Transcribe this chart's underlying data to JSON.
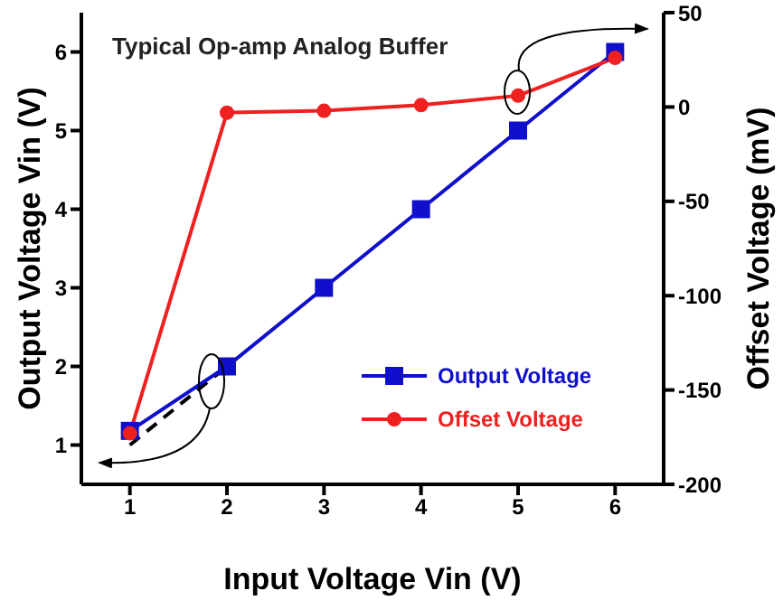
{
  "chart_data": {
    "type": "line",
    "xlabel": "Input Voltage Vin (V)",
    "ylabel": "Output Voltage Vin (V)",
    "y2label": "Offset Voltage (mV)",
    "annotations": [
      "Typical Op-amp Analog Buffer"
    ],
    "x": [
      1,
      2,
      3,
      4,
      5,
      6
    ],
    "series": [
      {
        "color": "#000000",
        "values": [
          1,
          2,
          null,
          null,
          null,
          null
        ],
        "line_style": "dashed",
        "marker": "none"
      },
      {
        "name": "Output Voltage",
        "color": "#1010cc",
        "values": [
          1.18,
          2,
          3,
          4,
          5,
          6
        ],
        "marker": "square",
        "line_style": "solid"
      },
      {
        "name": "Offset Voltage",
        "color": "#ee2020",
        "values": [
          -173,
          -3,
          -2,
          1,
          6,
          26
        ],
        "axis": "y2",
        "marker": "circle",
        "line_style": "solid"
      }
    ],
    "xlim": [
      0.5,
      6.5
    ],
    "xticks": [
      1,
      2,
      3,
      4,
      5,
      6
    ],
    "ylim": [
      0.5,
      6.5
    ],
    "yticks": [
      1,
      2,
      3,
      4,
      5,
      6
    ],
    "y2lim": [
      -200,
      50
    ],
    "y2ticks": [
      -200,
      -150,
      -100,
      -50,
      0,
      50
    ],
    "grid": false,
    "legend": "bottom right"
  }
}
